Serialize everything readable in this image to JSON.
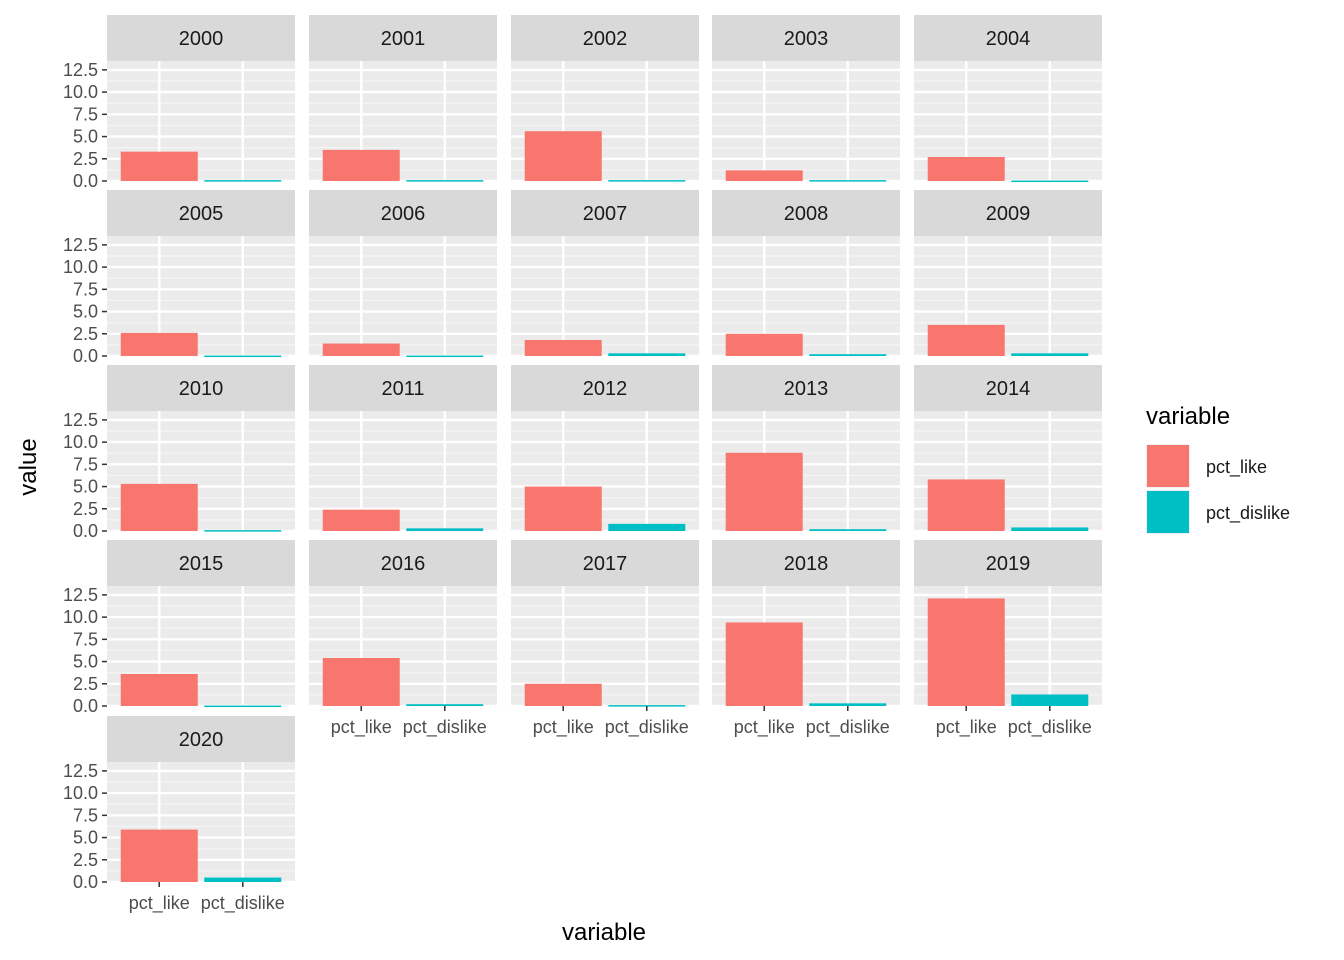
{
  "chart_data": {
    "type": "bar",
    "facet_by": "year",
    "xlabel": "variable",
    "ylabel": "value",
    "categories": [
      "pct_like",
      "pct_dislike"
    ],
    "colors": {
      "pct_like": "#F8766D",
      "pct_dislike": "#00BFC4"
    },
    "legend": {
      "title": "variable",
      "position": "right",
      "entries": [
        "pct_like",
        "pct_dislike"
      ]
    },
    "ylim": [
      0,
      13.5
    ],
    "yticks": [
      "0.0",
      "2.5",
      "5.0",
      "7.5",
      "10.0",
      "12.5"
    ],
    "grid": true,
    "panels": [
      {
        "year": "2000",
        "values": [
          3.3,
          0.1
        ]
      },
      {
        "year": "2001",
        "values": [
          3.5,
          0.1
        ]
      },
      {
        "year": "2002",
        "values": [
          5.6,
          0.1
        ]
      },
      {
        "year": "2003",
        "values": [
          1.2,
          0.1
        ]
      },
      {
        "year": "2004",
        "values": [
          2.7,
          0.05
        ]
      },
      {
        "year": "2005",
        "values": [
          2.6,
          0.05
        ]
      },
      {
        "year": "2006",
        "values": [
          1.4,
          0.05
        ]
      },
      {
        "year": "2007",
        "values": [
          1.8,
          0.3
        ]
      },
      {
        "year": "2008",
        "values": [
          2.5,
          0.2
        ]
      },
      {
        "year": "2009",
        "values": [
          3.5,
          0.3
        ]
      },
      {
        "year": "2010",
        "values": [
          5.3,
          0.1
        ]
      },
      {
        "year": "2011",
        "values": [
          2.4,
          0.3
        ]
      },
      {
        "year": "2012",
        "values": [
          5.0,
          0.8
        ]
      },
      {
        "year": "2013",
        "values": [
          8.8,
          0.2
        ]
      },
      {
        "year": "2014",
        "values": [
          5.8,
          0.4
        ]
      },
      {
        "year": "2015",
        "values": [
          3.6,
          0.05
        ]
      },
      {
        "year": "2016",
        "values": [
          5.4,
          0.2
        ]
      },
      {
        "year": "2017",
        "values": [
          2.5,
          0.1
        ]
      },
      {
        "year": "2018",
        "values": [
          9.4,
          0.3
        ]
      },
      {
        "year": "2019",
        "values": [
          12.1,
          1.3
        ]
      },
      {
        "year": "2020",
        "values": [
          5.9,
          0.5
        ]
      }
    ]
  }
}
